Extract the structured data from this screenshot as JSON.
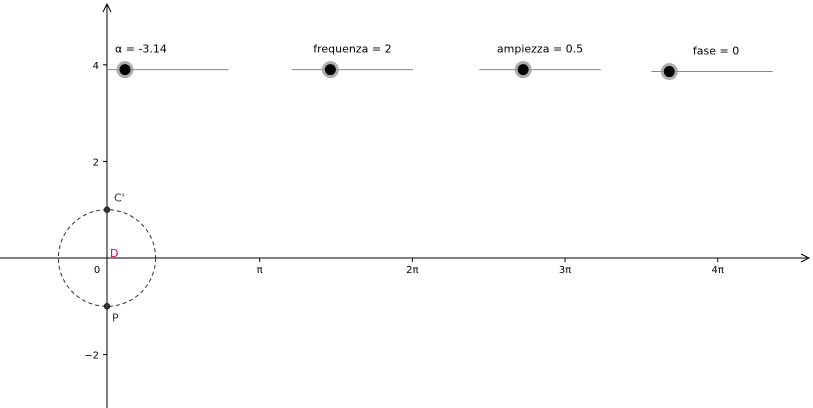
{
  "axes": {
    "x_ticks": [
      {
        "value": 0,
        "label": "0"
      },
      {
        "value": 3.14159,
        "label": "π"
      },
      {
        "value": 6.28318,
        "label": "2π"
      },
      {
        "value": 9.42478,
        "label": "3π"
      },
      {
        "value": 12.56637,
        "label": "4π"
      }
    ],
    "y_ticks": [
      {
        "value": 4,
        "label": "4"
      },
      {
        "value": 2,
        "label": "2"
      },
      {
        "value": -2,
        "label": "−2"
      }
    ],
    "x_range": [
      -2.2,
      14.6
    ],
    "y_range": [
      -3.1,
      5.4
    ]
  },
  "sliders": [
    {
      "name": "alpha",
      "label": "α = -3.14",
      "min": -3.14,
      "max": 3.14,
      "value": -3.14,
      "anchor": [
        0.0,
        3.9
      ],
      "length": 2.5
    },
    {
      "name": "frequenza",
      "label": "frequenza = 2",
      "min": 0,
      "max": 10,
      "value": 2,
      "anchor": [
        3.8,
        3.9
      ],
      "length": 2.5
    },
    {
      "name": "ampiezza",
      "label": "ampiezza = 0.5",
      "min": 0,
      "max": 2,
      "value": 0.5,
      "anchor": [
        7.66,
        3.9
      ],
      "length": 2.5
    },
    {
      "name": "fase",
      "label": "fase = 0",
      "min": 0,
      "max": 10,
      "value": 0,
      "anchor": [
        11.2,
        3.86
      ],
      "length": 2.5
    }
  ],
  "circle": {
    "center": [
      0,
      0
    ],
    "radius": 1
  },
  "points": [
    {
      "name": "C'",
      "label": "C'",
      "x": 0,
      "y": 1,
      "color": "#333333",
      "label_color": "#333333"
    },
    {
      "name": "D",
      "label": "D",
      "x": 0,
      "y": 0,
      "color": "#cc0066",
      "label_color": "#cc0066"
    },
    {
      "name": "P",
      "label": "P",
      "x": 0,
      "y": -1,
      "color": "#333333",
      "label_color": "#333333"
    }
  ],
  "colors": {
    "axis": "#000000",
    "slider_line": "#888888",
    "slider_knob": "#000000",
    "slider_halo": "#999999",
    "circle": "#333333"
  }
}
